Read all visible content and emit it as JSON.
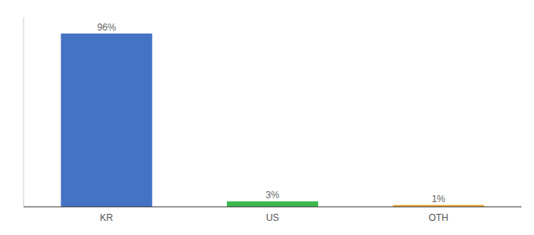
{
  "chart_data": {
    "type": "bar",
    "categories": [
      "KR",
      "US",
      "OTH"
    ],
    "values": [
      96,
      3,
      1
    ],
    "colors": [
      "#4472c4",
      "#3db84d",
      "#f0a630"
    ],
    "value_labels": [
      "96%",
      "3%",
      "1%"
    ],
    "data_labels": true,
    "ylim": [
      0,
      105
    ],
    "tick_labels": "x"
  }
}
